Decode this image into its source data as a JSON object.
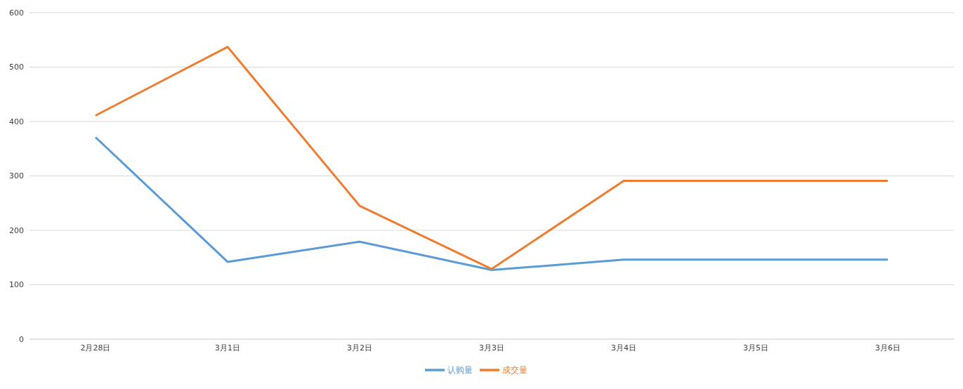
{
  "chart_data": {
    "type": "line",
    "categories": [
      "2月28日",
      "3月1日",
      "3月2日",
      "3月3日",
      "3月4日",
      "3月5日",
      "3月6日"
    ],
    "series": [
      {
        "name": "认购量",
        "color": "#5b9bd5",
        "values": [
          371,
          142,
          179,
          127,
          146,
          146,
          146
        ]
      },
      {
        "name": "成交量",
        "color": "#ed7d31",
        "values": [
          411,
          537,
          245,
          129,
          291,
          291,
          291
        ]
      }
    ],
    "ylim": [
      0,
      600
    ],
    "yticks": [
      0,
      100,
      200,
      300,
      400,
      500,
      600
    ],
    "grid": "y",
    "legend": "bottom",
    "marker": "none",
    "line_style": "solid"
  }
}
